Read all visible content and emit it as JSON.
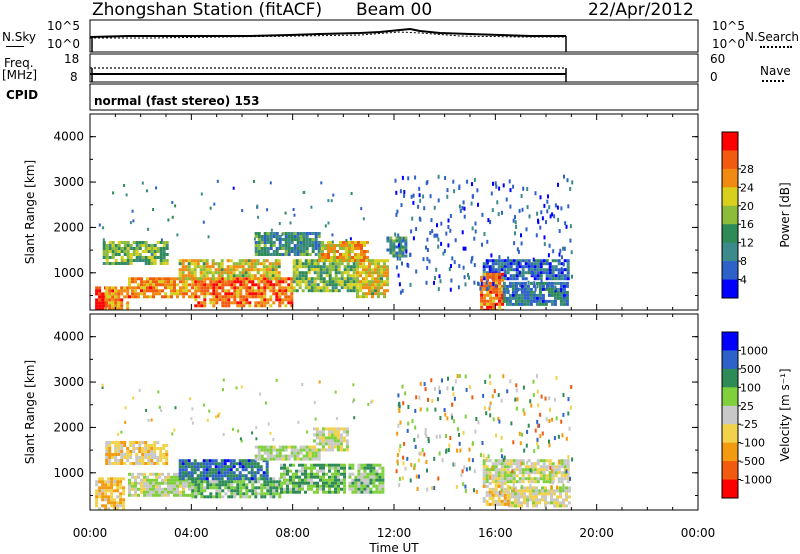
{
  "header": {
    "station": "Zhongshan Station (fitACF)",
    "beam": "Beam 00",
    "date": "22/Apr/2012"
  },
  "noise_panel": {
    "left_label": "N.Sky",
    "left_ticks": [
      "10^5",
      "10^0"
    ],
    "right_ticks": [
      "10^5",
      "10^0"
    ],
    "right_label": "N.Search"
  },
  "freq_panel": {
    "left_label_1": "Freq.",
    "left_label_2": "[MHz]",
    "left_ticks": [
      "18",
      "8"
    ],
    "right_ticks": [
      "60",
      "0"
    ],
    "right_label": "Nave"
  },
  "cpid": {
    "label": "CPID",
    "value": "normal (fast stereo) 153"
  },
  "colors": {
    "power_scale": [
      "#0000ff",
      "#2f62c8",
      "#3c8a8a",
      "#2e8b57",
      "#8dbb3a",
      "#d8d01c",
      "#f08a10",
      "#f25a10",
      "#ff0000"
    ],
    "velocity_scale": [
      "#0000ff",
      "#2f62c8",
      "#2e8b57",
      "#7fd03c",
      "#c8c8c8",
      "#f2d24a",
      "#f29a10",
      "#f25a10",
      "#ff0000"
    ]
  },
  "chart_data": [
    {
      "type": "heatmap",
      "panel": "power",
      "ylabel": "Slant Range [km]",
      "ylim": [
        180,
        4500
      ],
      "yticks": [
        1000,
        2000,
        3000,
        4000
      ],
      "xlim": [
        0,
        24
      ],
      "colorbar_label": "Power [dB]",
      "colorbar_ticks": [
        "4",
        "8",
        "12",
        "16",
        "20",
        "24",
        "28"
      ],
      "colorbar_range": [
        0,
        30
      ],
      "regions": [
        {
          "x0": 0.2,
          "x1": 0.6,
          "y0": 180,
          "y1": 700,
          "value": 28
        },
        {
          "x0": 0.6,
          "x1": 1.5,
          "y0": 180,
          "y1": 700,
          "value": 22
        },
        {
          "x0": 0.5,
          "x1": 3.0,
          "y0": 1200,
          "y1": 1700,
          "value": 14
        },
        {
          "x0": 1.5,
          "x1": 4.0,
          "y0": 500,
          "y1": 900,
          "value": 22
        },
        {
          "x0": 4.0,
          "x1": 8.0,
          "y0": 300,
          "y1": 900,
          "value": 24
        },
        {
          "x0": 3.5,
          "x1": 7.5,
          "y0": 900,
          "y1": 1300,
          "value": 18
        },
        {
          "x0": 8.0,
          "x1": 10.5,
          "y0": 600,
          "y1": 1300,
          "value": 14
        },
        {
          "x0": 9.0,
          "x1": 11.0,
          "y0": 1300,
          "y1": 1700,
          "value": 20
        },
        {
          "x0": 10.5,
          "x1": 11.7,
          "y0": 500,
          "y1": 1300,
          "value": 18
        },
        {
          "x0": 6.5,
          "x1": 9.0,
          "y0": 1400,
          "y1": 1900,
          "value": 10
        },
        {
          "x0": 11.7,
          "x1": 12.5,
          "y0": 1400,
          "y1": 1800,
          "value": 10
        },
        {
          "x0": 15.5,
          "x1": 18.9,
          "y0": 900,
          "y1": 1300,
          "value": 6
        },
        {
          "x0": 15.4,
          "x1": 16.3,
          "y0": 200,
          "y1": 1000,
          "value": 24
        },
        {
          "x0": 16.3,
          "x1": 18.9,
          "y0": 300,
          "y1": 800,
          "value": 8
        }
      ]
    },
    {
      "type": "heatmap",
      "panel": "velocity",
      "ylabel": "Slant Range [km]",
      "ylim": [
        180,
        4500
      ],
      "yticks": [
        1000,
        2000,
        3000,
        4000
      ],
      "xlim": [
        0,
        24
      ],
      "xticks": [
        "00:00",
        "04:00",
        "08:00",
        "12:00",
        "16:00",
        "20:00",
        "00:00"
      ],
      "xlabel": "Time UT",
      "colorbar_label": "Velocity [m s⁻¹]",
      "colorbar_ticks": [
        "1000",
        "500",
        "100",
        "25",
        "-25",
        "-100",
        "-500",
        "-1000"
      ],
      "colorbar_range": [
        -1000,
        1000
      ],
      "regions": [
        {
          "x0": 0.2,
          "x1": 1.3,
          "y0": 200,
          "y1": 900,
          "value": -300
        },
        {
          "x0": 0.6,
          "x1": 3.0,
          "y0": 1200,
          "y1": 1700,
          "value": -200
        },
        {
          "x0": 1.5,
          "x1": 4.0,
          "y0": 500,
          "y1": 1000,
          "value": 80
        },
        {
          "x0": 4.0,
          "x1": 7.5,
          "y0": 500,
          "y1": 900,
          "value": 300
        },
        {
          "x0": 3.5,
          "x1": 7.0,
          "y0": 900,
          "y1": 1300,
          "value": 600
        },
        {
          "x0": 7.5,
          "x1": 10.0,
          "y0": 600,
          "y1": 1200,
          "value": 300
        },
        {
          "x0": 8.8,
          "x1": 10.2,
          "y0": 1500,
          "y1": 2000,
          "value": 0
        },
        {
          "x0": 10.2,
          "x1": 11.6,
          "y0": 600,
          "y1": 1200,
          "value": 200
        },
        {
          "x0": 6.5,
          "x1": 9.0,
          "y0": 1300,
          "y1": 1600,
          "value": 60
        },
        {
          "x0": 15.5,
          "x1": 18.9,
          "y0": 800,
          "y1": 1300,
          "value": 0
        },
        {
          "x0": 16.5,
          "x1": 18.9,
          "y0": 300,
          "y1": 700,
          "value": -80
        },
        {
          "x0": 15.5,
          "x1": 16.5,
          "y0": 300,
          "y1": 800,
          "value": -150
        }
      ]
    }
  ]
}
